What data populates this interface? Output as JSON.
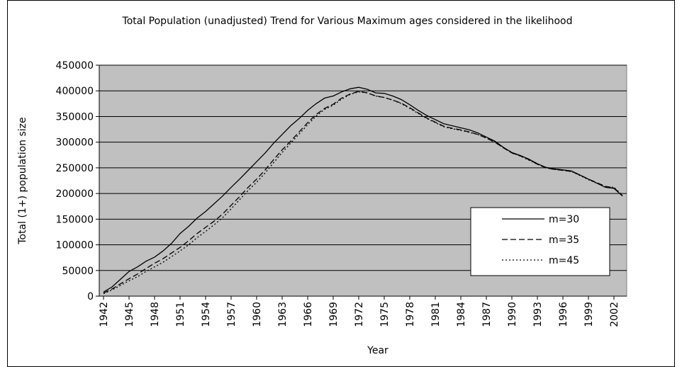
{
  "chart_data": {
    "type": "line",
    "title": "Total Population (unadjusted) Trend for Various Maximum ages considered in the likelihood",
    "x_label": "Year",
    "y_label": "Total (1+) population size",
    "x": [
      1942,
      1943,
      1944,
      1945,
      1946,
      1947,
      1948,
      1949,
      1950,
      1951,
      1952,
      1953,
      1954,
      1955,
      1956,
      1957,
      1958,
      1959,
      1960,
      1961,
      1962,
      1963,
      1964,
      1965,
      1966,
      1967,
      1968,
      1969,
      1970,
      1971,
      1972,
      1973,
      1974,
      1975,
      1976,
      1977,
      1978,
      1979,
      1980,
      1981,
      1982,
      1983,
      1984,
      1985,
      1986,
      1987,
      1988,
      1989,
      1990,
      1991,
      1992,
      1993,
      1994,
      1995,
      1996,
      1997,
      1998,
      1999,
      2000,
      2001,
      2002,
      2003
    ],
    "xlim": [
      1941.5,
      2003.5
    ],
    "xticks": [
      1942,
      1945,
      1948,
      1951,
      1954,
      1957,
      1960,
      1963,
      1966,
      1969,
      1972,
      1975,
      1978,
      1981,
      1984,
      1987,
      1990,
      1993,
      1996,
      1999,
      2002
    ],
    "ylim": [
      0,
      450000
    ],
    "yticks": [
      0,
      50000,
      100000,
      150000,
      200000,
      250000,
      300000,
      350000,
      400000,
      450000
    ],
    "grid": true,
    "legend": "inside-lower-right",
    "series": [
      {
        "name": "m=30",
        "color": "#000000",
        "style": "solid",
        "values": [
          8000,
          18000,
          33000,
          48000,
          57000,
          68000,
          76000,
          88000,
          103000,
          122000,
          136000,
          152000,
          165000,
          180000,
          195000,
          212000,
          228000,
          245000,
          262000,
          279000,
          298000,
          315000,
          332000,
          346000,
          362000,
          375000,
          386000,
          390000,
          398000,
          404000,
          407000,
          403000,
          396000,
          395000,
          390000,
          383000,
          373000,
          362000,
          352000,
          344000,
          336000,
          332000,
          328000,
          324000,
          318000,
          310000,
          302000,
          290000,
          280000,
          274000,
          267000,
          258000,
          251000,
          248000,
          246000,
          244000,
          236000,
          228000,
          220000,
          212000,
          210000,
          195000
        ]
      },
      {
        "name": "m=35",
        "color": "#000000",
        "style": "dashed",
        "values": [
          6000,
          14000,
          24000,
          34000,
          43000,
          54000,
          64000,
          73000,
          84000,
          95000,
          108000,
          122000,
          134000,
          146000,
          160000,
          177000,
          194000,
          212000,
          228000,
          246000,
          266000,
          285000,
          302000,
          320000,
          338000,
          354000,
          366000,
          374000,
          386000,
          394000,
          399000,
          396000,
          390000,
          387000,
          382000,
          376000,
          367000,
          357000,
          347000,
          339000,
          331000,
          327000,
          324000,
          320000,
          315000,
          308000,
          300000,
          289000,
          279000,
          273000,
          266000,
          257000,
          250000,
          247000,
          245000,
          243000,
          236000,
          228000,
          221000,
          214000,
          211000,
          196000
        ]
      },
      {
        "name": "m=45",
        "color": "#000000",
        "style": "dotted",
        "values": [
          5000,
          12000,
          21000,
          30000,
          38000,
          48000,
          57000,
          66000,
          77000,
          88000,
          100000,
          114000,
          126000,
          139000,
          153000,
          170000,
          188000,
          206000,
          222000,
          240000,
          260000,
          280000,
          298000,
          316000,
          334000,
          351000,
          364000,
          372000,
          384000,
          393000,
          398000,
          396000,
          390000,
          387000,
          382000,
          375000,
          366000,
          356000,
          346000,
          338000,
          330000,
          326000,
          323000,
          319000,
          315000,
          308000,
          300000,
          289000,
          279000,
          273000,
          265000,
          257000,
          250000,
          247000,
          245000,
          243000,
          235000,
          227000,
          220000,
          213000,
          212000,
          197000
        ]
      }
    ]
  }
}
